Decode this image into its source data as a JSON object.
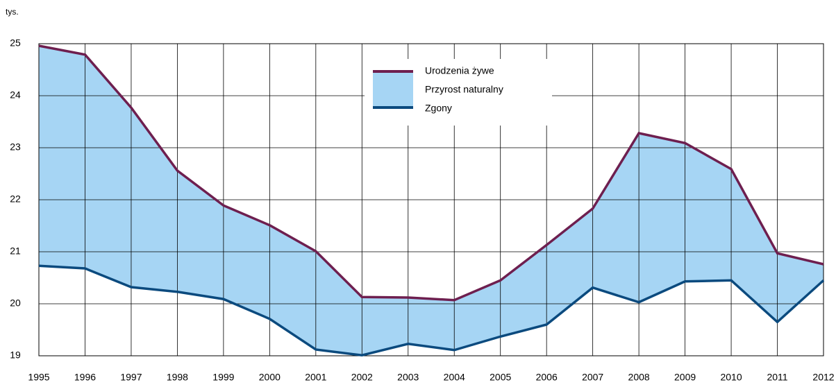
{
  "chart_data": {
    "type": "line",
    "y_label": "tys.",
    "categories": [
      "1995",
      "1996",
      "1997",
      "1998",
      "1999",
      "2000",
      "2001",
      "2002",
      "2003",
      "2004",
      "2005",
      "2006",
      "2007",
      "2008",
      "2009",
      "2010",
      "2011",
      "2012"
    ],
    "series": [
      {
        "name": "Urodzenia żywe",
        "color": "#6e1f4f",
        "values": [
          24.96,
          24.79,
          23.77,
          22.56,
          21.89,
          21.51,
          21.01,
          20.13,
          20.12,
          20.07,
          20.45,
          21.13,
          21.83,
          23.28,
          23.09,
          22.59,
          20.97,
          20.76
        ]
      },
      {
        "name": "Zgony",
        "color": "#0b4a7e",
        "values": [
          20.73,
          20.68,
          20.32,
          20.23,
          20.09,
          19.71,
          19.12,
          19.01,
          19.23,
          19.11,
          19.37,
          19.6,
          20.31,
          20.03,
          20.43,
          20.45,
          19.65,
          20.45
        ]
      }
    ],
    "fill_label": "Przyrost naturalny",
    "fill_color": "#a6d5f4",
    "ylim": [
      19,
      25
    ],
    "yticks": [
      19,
      20,
      21,
      22,
      23,
      24,
      25
    ],
    "grid": true
  }
}
